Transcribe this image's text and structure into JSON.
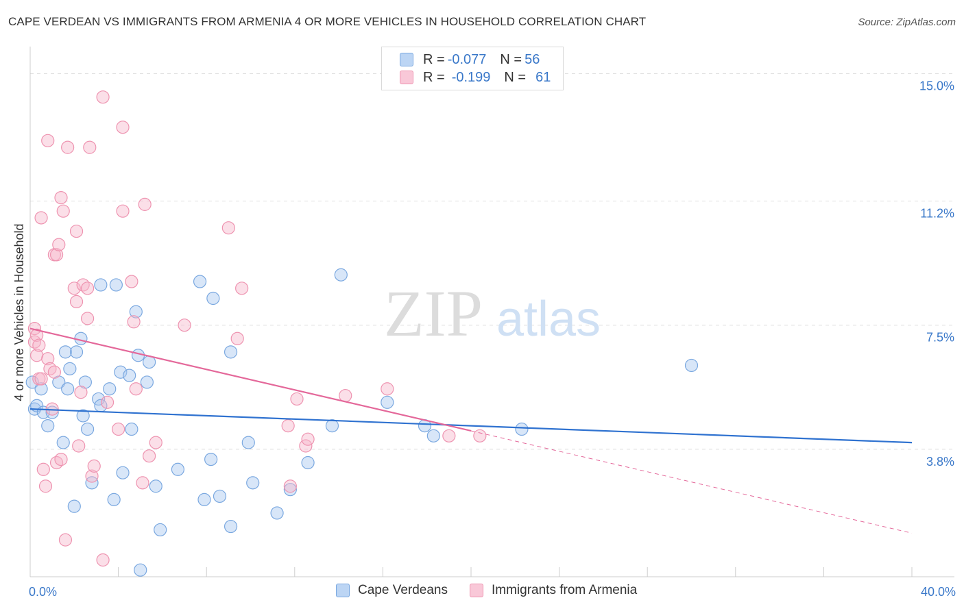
{
  "title": "CAPE VERDEAN VS IMMIGRANTS FROM ARMENIA 4 OR MORE VEHICLES IN HOUSEHOLD CORRELATION CHART",
  "source": "Source: ZipAtlas.com",
  "watermark": {
    "zip": "ZIP",
    "atlas": "atlas"
  },
  "colors": {
    "blue_fill": "#a8c8f0",
    "blue_stroke": "#7aa8e0",
    "blue_line": "#2f72d0",
    "pink_fill": "#f7b8cc",
    "pink_stroke": "#ee93b0",
    "pink_line": "#e4689a",
    "axis_label": "#3a78c9",
    "grid": "#dddddd"
  },
  "legend": {
    "series1": {
      "r_label": "R = ",
      "r_value": "-0.077",
      "n_label": "N = ",
      "n_value": "56"
    },
    "series2": {
      "r_label": "R = ",
      "r_value": "-0.199",
      "n_label": "N = ",
      "n_value": "61"
    }
  },
  "bottom_legend": {
    "series1": "Cape Verdeans",
    "series2": "Immigrants from Armenia"
  },
  "chart_data": {
    "type": "scatter",
    "title": "CAPE VERDEAN VS IMMIGRANTS FROM ARMENIA 4 OR MORE VEHICLES IN HOUSEHOLD CORRELATION CHART",
    "xlabel": "",
    "ylabel": "4 or more Vehicles in Household",
    "xlim": [
      0,
      40
    ],
    "ylim": [
      0,
      15.6
    ],
    "x_tick_labels": [
      {
        "value": 0,
        "label": "0.0%"
      },
      {
        "value": 40,
        "label": "40.0%"
      }
    ],
    "y_tick_labels": [
      {
        "value": 3.8,
        "label": "3.8%"
      },
      {
        "value": 7.5,
        "label": "7.5%"
      },
      {
        "value": 11.2,
        "label": "11.2%"
      },
      {
        "value": 15.0,
        "label": "15.0%"
      }
    ],
    "x_minor_ticks": [
      4,
      8,
      12,
      16,
      20,
      24,
      28,
      32,
      36
    ],
    "series": [
      {
        "name": "Cape Verdeans",
        "color": "#a8c8f0",
        "trend": {
          "x0": 0,
          "y0": 5.0,
          "x1": 40,
          "y1": 4.0,
          "dashed_from": null
        },
        "points": [
          [
            0.1,
            5.8
          ],
          [
            0.2,
            5.0
          ],
          [
            0.3,
            5.1
          ],
          [
            0.5,
            5.6
          ],
          [
            0.6,
            4.9
          ],
          [
            0.8,
            4.5
          ],
          [
            1.0,
            4.9
          ],
          [
            1.3,
            5.8
          ],
          [
            1.5,
            4.0
          ],
          [
            1.6,
            6.7
          ],
          [
            1.7,
            5.6
          ],
          [
            1.8,
            6.2
          ],
          [
            2.0,
            2.1
          ],
          [
            2.1,
            6.7
          ],
          [
            2.3,
            7.1
          ],
          [
            2.4,
            4.8
          ],
          [
            2.5,
            5.8
          ],
          [
            2.6,
            4.4
          ],
          [
            2.8,
            2.8
          ],
          [
            3.1,
            5.3
          ],
          [
            3.2,
            5.1
          ],
          [
            3.2,
            8.7
          ],
          [
            3.6,
            5.6
          ],
          [
            3.8,
            2.3
          ],
          [
            3.9,
            8.7
          ],
          [
            4.1,
            6.1
          ],
          [
            4.2,
            3.1
          ],
          [
            4.5,
            6.0
          ],
          [
            4.6,
            4.4
          ],
          [
            4.8,
            7.9
          ],
          [
            4.9,
            6.6
          ],
          [
            5.0,
            0.2
          ],
          [
            5.3,
            5.8
          ],
          [
            5.4,
            6.4
          ],
          [
            5.7,
            2.7
          ],
          [
            5.9,
            1.4
          ],
          [
            6.7,
            3.2
          ],
          [
            7.7,
            8.8
          ],
          [
            7.9,
            2.3
          ],
          [
            8.2,
            3.5
          ],
          [
            8.3,
            8.3
          ],
          [
            8.6,
            2.4
          ],
          [
            9.1,
            6.7
          ],
          [
            9.1,
            1.5
          ],
          [
            9.9,
            4.0
          ],
          [
            10.1,
            2.8
          ],
          [
            11.2,
            1.9
          ],
          [
            11.8,
            2.6
          ],
          [
            12.6,
            3.4
          ],
          [
            13.7,
            4.5
          ],
          [
            14.1,
            9.0
          ],
          [
            16.2,
            5.2
          ],
          [
            17.9,
            4.5
          ],
          [
            18.3,
            4.2
          ],
          [
            22.3,
            4.4
          ],
          [
            30.0,
            6.3
          ]
        ]
      },
      {
        "name": "Immigrants from Armenia",
        "color": "#f7b8cc",
        "trend": {
          "x0": 0,
          "y0": 7.4,
          "x1": 40,
          "y1": 1.3,
          "dashed_from": 20.0
        },
        "points": [
          [
            0.2,
            7.4
          ],
          [
            0.2,
            7.0
          ],
          [
            0.3,
            6.6
          ],
          [
            0.3,
            7.2
          ],
          [
            0.4,
            6.9
          ],
          [
            0.4,
            5.9
          ],
          [
            0.5,
            5.9
          ],
          [
            0.5,
            10.7
          ],
          [
            0.6,
            3.2
          ],
          [
            0.7,
            2.7
          ],
          [
            0.8,
            13.0
          ],
          [
            0.8,
            6.5
          ],
          [
            0.9,
            6.2
          ],
          [
            1.0,
            5.0
          ],
          [
            1.1,
            6.1
          ],
          [
            1.1,
            9.6
          ],
          [
            1.2,
            3.4
          ],
          [
            1.2,
            9.6
          ],
          [
            1.3,
            9.9
          ],
          [
            1.4,
            11.3
          ],
          [
            1.4,
            3.5
          ],
          [
            1.5,
            10.9
          ],
          [
            1.6,
            1.1
          ],
          [
            1.7,
            12.8
          ],
          [
            2.0,
            8.6
          ],
          [
            2.1,
            8.2
          ],
          [
            2.1,
            10.3
          ],
          [
            2.2,
            3.9
          ],
          [
            2.3,
            5.5
          ],
          [
            2.4,
            8.7
          ],
          [
            2.6,
            7.7
          ],
          [
            2.6,
            8.6
          ],
          [
            2.7,
            12.8
          ],
          [
            2.8,
            3.0
          ],
          [
            2.9,
            3.3
          ],
          [
            3.3,
            14.3
          ],
          [
            3.3,
            0.5
          ],
          [
            3.5,
            5.2
          ],
          [
            4.0,
            4.4
          ],
          [
            4.2,
            13.4
          ],
          [
            4.2,
            10.9
          ],
          [
            4.6,
            8.8
          ],
          [
            4.7,
            7.6
          ],
          [
            4.8,
            5.6
          ],
          [
            5.1,
            2.8
          ],
          [
            5.2,
            11.1
          ],
          [
            5.4,
            3.6
          ],
          [
            5.7,
            4.0
          ],
          [
            7.0,
            7.5
          ],
          [
            9.0,
            10.4
          ],
          [
            9.4,
            7.1
          ],
          [
            9.6,
            8.6
          ],
          [
            11.7,
            4.5
          ],
          [
            11.8,
            2.7
          ],
          [
            12.1,
            5.3
          ],
          [
            12.5,
            3.9
          ],
          [
            12.6,
            4.1
          ],
          [
            14.3,
            5.4
          ],
          [
            16.2,
            5.6
          ],
          [
            19.0,
            4.2
          ],
          [
            20.4,
            4.2
          ]
        ]
      }
    ]
  }
}
